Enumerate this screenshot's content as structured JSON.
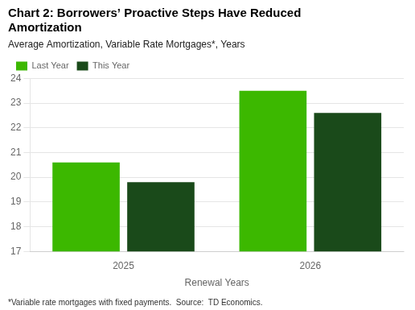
{
  "chart_data": {
    "type": "bar",
    "title": "Chart 2: Borrowers’ Proactive Steps Have Reduced\nAmortization",
    "subtitle": "Average Amortization, Variable Rate Mortgages*, Years",
    "footnote": "*Variable rate mortgages with fixed payments.  Source:  TD Economics.",
    "xlabel": "Renewal Years",
    "categories": [
      "2025",
      "2026"
    ],
    "series": [
      {
        "name": "Last Year",
        "color": "#3CB800",
        "values": [
          20.6,
          23.5
        ]
      },
      {
        "name": "This Year",
        "color": "#1A4A1A",
        "values": [
          19.8,
          22.6
        ]
      }
    ],
    "ylim": [
      17,
      24
    ],
    "yticks": [
      17,
      18,
      19,
      20,
      21,
      22,
      23,
      24
    ],
    "grid": true,
    "legend": "upper left"
  }
}
